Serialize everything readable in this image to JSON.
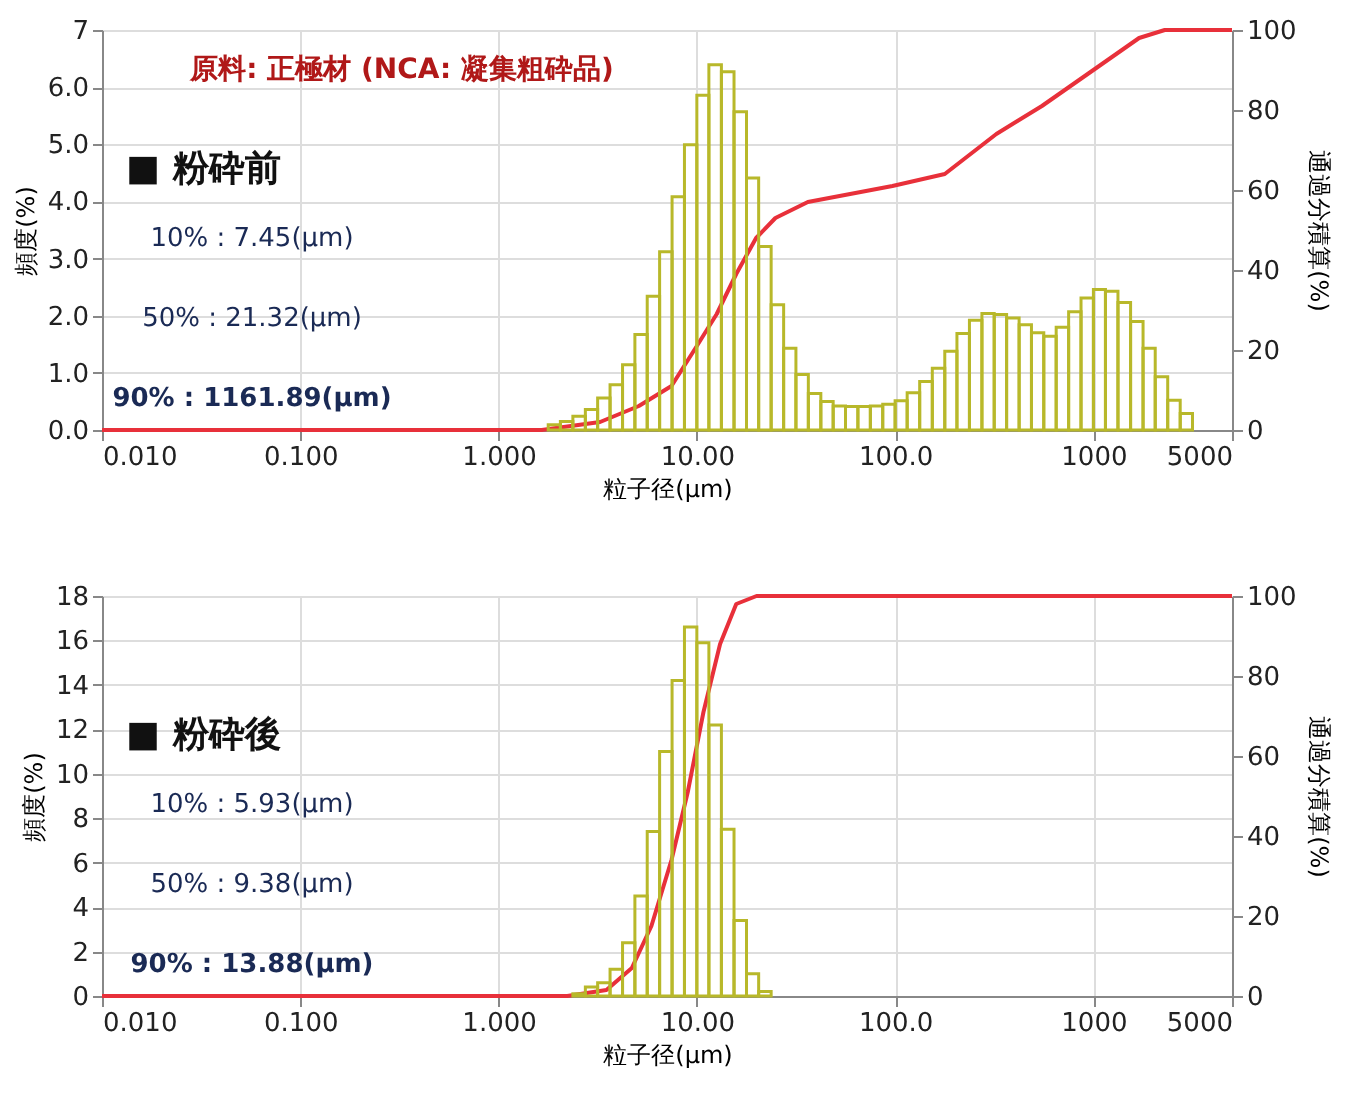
{
  "chart_data": [
    {
      "type": "histogram",
      "title": "原料: 正極材 (NCA: 凝集粗砕品)",
      "xlabel": "粒子径(μm)",
      "ylabel": "頻度(%)",
      "y2label": "通過分積算(%)",
      "annotations": [
        "■ 粉砕前",
        "10% : 7.45(μm)",
        "50% : 21.32(μm)",
        "90% : 1161.89(μm)"
      ],
      "log": "x",
      "grid": true,
      "xlim": [
        0.01,
        5000
      ],
      "xticks": [
        {
          "value": 0.01,
          "label": "0.010"
        },
        {
          "value": 0.1,
          "label": "0.100"
        },
        {
          "value": 1,
          "label": "1.000"
        },
        {
          "value": 10,
          "label": "10.00"
        },
        {
          "value": 100,
          "label": "100.0"
        },
        1000,
        5000
      ],
      "ylim": [
        0,
        7
      ],
      "yticks": [
        {
          "value": 0,
          "label": "0.0"
        },
        {
          "value": 1,
          "label": "1.0"
        },
        {
          "value": 2,
          "label": "2.0"
        },
        {
          "value": 3,
          "label": "3.0"
        },
        {
          "value": 4,
          "label": "4.0"
        },
        {
          "value": 5,
          "label": "5.0"
        },
        {
          "value": 6,
          "label": "6.0"
        },
        7
      ],
      "y2lim": [
        0,
        100
      ],
      "y2ticks": [
        0,
        20,
        40,
        60,
        80,
        100
      ],
      "series": [
        {
          "type": "histogram",
          "color": "#b8b82a",
          "bins": [
            1.78,
            2.05,
            2.37,
            2.74,
            3.16,
            3.65,
            4.22,
            4.87,
            5.62,
            6.49,
            7.5,
            8.66,
            10,
            11.5,
            13.3,
            15.4,
            17.8,
            20.5,
            23.7,
            27.4,
            31.6,
            36.5,
            42.2,
            48.7,
            56.2,
            64.9,
            75,
            86.6,
            100,
            115,
            133,
            154,
            178,
            205,
            237,
            274,
            316,
            365,
            422,
            487,
            562,
            649,
            750,
            866,
            1000,
            1150,
            1330,
            1540,
            1780,
            2050,
            2370,
            2740,
            3160
          ],
          "values": [
            0.09,
            0.15,
            0.24,
            0.36,
            0.56,
            0.79,
            1.14,
            1.67,
            2.34,
            3.12,
            4.08,
            4.99,
            5.86,
            6.39,
            6.27,
            5.57,
            4.41,
            3.21,
            2.19,
            1.43,
            0.97,
            0.64,
            0.5,
            0.42,
            0.41,
            0.41,
            0.42,
            0.45,
            0.51,
            0.65,
            0.85,
            1.08,
            1.38,
            1.69,
            1.92,
            2.04,
            2.02,
            1.96,
            1.84,
            1.7,
            1.64,
            1.8,
            2.07,
            2.31,
            2.46,
            2.43,
            2.23,
            1.9,
            1.43,
            0.93,
            0.52,
            0.29
          ]
        },
        {
          "type": "line",
          "axis": "y2",
          "color": "#e8303a",
          "x": [
            0.01,
            1.65,
            3.25,
            5.1,
            7.45,
            10,
            12.6,
            15.8,
            19.9,
            24.9,
            36.3,
            96.9,
            178,
            324,
            550,
            1000,
            1700,
            2290,
            5000
          ],
          "values": [
            0,
            0,
            2,
            6,
            11,
            21,
            29,
            39,
            48,
            53,
            57,
            61,
            64,
            74,
            81,
            90,
            98,
            100,
            100
          ]
        }
      ]
    },
    {
      "type": "histogram",
      "xlabel": "粒子径(μm)",
      "ylabel": "頻度(%)",
      "y2label": "通過分積算(%)",
      "annotations": [
        "■ 粉砕後",
        "10% : 5.93(μm)",
        "50% : 9.38(μm)",
        "90% : 13.88(μm)"
      ],
      "log": "x",
      "grid": true,
      "xlim": [
        0.01,
        5000
      ],
      "xticks": [
        {
          "value": 0.01,
          "label": "0.010"
        },
        {
          "value": 0.1,
          "label": "0.100"
        },
        {
          "value": 1,
          "label": "1.000"
        },
        {
          "value": 10,
          "label": "10.00"
        },
        {
          "value": 100,
          "label": "100.0"
        },
        1000,
        5000
      ],
      "ylim": [
        0,
        18
      ],
      "yticks": [
        0,
        2,
        4,
        6,
        8,
        10,
        12,
        14,
        16,
        18
      ],
      "y2lim": [
        0,
        100
      ],
      "y2ticks": [
        0,
        20,
        40,
        60,
        80,
        100
      ],
      "series": [
        {
          "type": "histogram",
          "color": "#b8b82a",
          "bins": [
            2.37,
            2.74,
            3.16,
            3.65,
            4.22,
            4.87,
            5.62,
            6.49,
            7.5,
            8.66,
            10,
            11.5,
            13.3,
            15.4,
            17.8,
            20.5,
            23.7
          ],
          "values": [
            0.1,
            0.4,
            0.6,
            1.2,
            2.4,
            4.5,
            7.4,
            11.0,
            14.2,
            16.6,
            15.9,
            12.2,
            7.5,
            3.4,
            1.0,
            0.2
          ]
        },
        {
          "type": "line",
          "axis": "y2",
          "color": "#e8303a",
          "x": [
            0.01,
            2.22,
            3.5,
            4.7,
            5.9,
            7.45,
            9.0,
            10.8,
            13.1,
            15.8,
            20,
            5000
          ],
          "values": [
            0,
            0,
            1.5,
            7,
            17.5,
            34,
            51,
            71,
            88,
            98,
            100,
            100
          ]
        }
      ]
    }
  ]
}
